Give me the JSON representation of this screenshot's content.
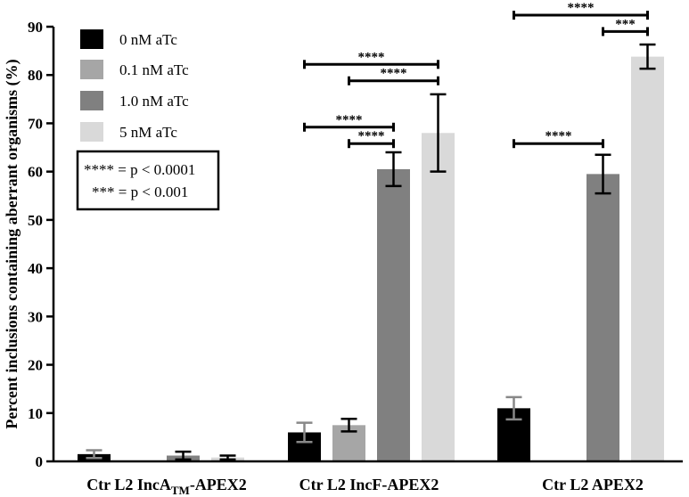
{
  "chart_data": {
    "type": "bar",
    "ylabel": "Percent inclusions containing aberrant organisms (%)",
    "ylim": [
      0,
      90
    ],
    "yticks": [
      "0",
      "10",
      "20",
      "30",
      "40",
      "50",
      "60",
      "70",
      "80",
      "90"
    ],
    "categories": [
      {
        "pre": "Ctr L2 IncA",
        "sub": "TM",
        "post": "-APEX2"
      },
      {
        "pre": "Ctr L2 IncF-APEX2",
        "sub": "",
        "post": ""
      },
      {
        "pre": "Ctr L2 APEX2",
        "sub": "",
        "post": ""
      }
    ],
    "series": [
      {
        "name": "0 nM aTc",
        "color": "#000000",
        "err_color": "#888888",
        "values": [
          1.5,
          6.0,
          11.0
        ],
        "errors": [
          0.8,
          2.0,
          2.3
        ]
      },
      {
        "name": "0.1 nM aTc",
        "color": "#a6a6a6",
        "err_color": "#000000",
        "values": [
          0,
          7.5,
          null
        ],
        "errors": [
          0,
          1.3,
          null
        ]
      },
      {
        "name": "1.0 nM aTc",
        "color": "#808080",
        "err_color": "#000000",
        "values": [
          1.2,
          60.5,
          59.5
        ],
        "errors": [
          0.8,
          3.5,
          4.0
        ]
      },
      {
        "name": "5 nM aTc",
        "color": "#d9d9d9",
        "err_color": "#000000",
        "values": [
          0.8,
          68.0,
          83.8
        ],
        "errors": [
          0.4,
          8.0,
          2.5
        ]
      }
    ],
    "legend_position": "top-left",
    "significance": [
      {
        "category": 1,
        "from": 0,
        "to": 3,
        "y": 82.2,
        "label": "****"
      },
      {
        "category": 1,
        "from": 1,
        "to": 3,
        "y": 78.8,
        "label": "****"
      },
      {
        "category": 1,
        "from": 0,
        "to": 2,
        "y": 69.2,
        "label": "****"
      },
      {
        "category": 1,
        "from": 1,
        "to": 2,
        "y": 65.8,
        "label": "****"
      },
      {
        "category": 2,
        "from": 0,
        "to": 3,
        "y": 92.4,
        "label": "****"
      },
      {
        "category": 2,
        "from": 2,
        "to": 3,
        "y": 89.0,
        "label": "***"
      },
      {
        "category": 2,
        "from": 0,
        "to": 2,
        "y": 65.8,
        "label": "****"
      }
    ],
    "pvalue_notes": [
      "**** = p < 0.0001",
      "*** = p < 0.001"
    ]
  }
}
